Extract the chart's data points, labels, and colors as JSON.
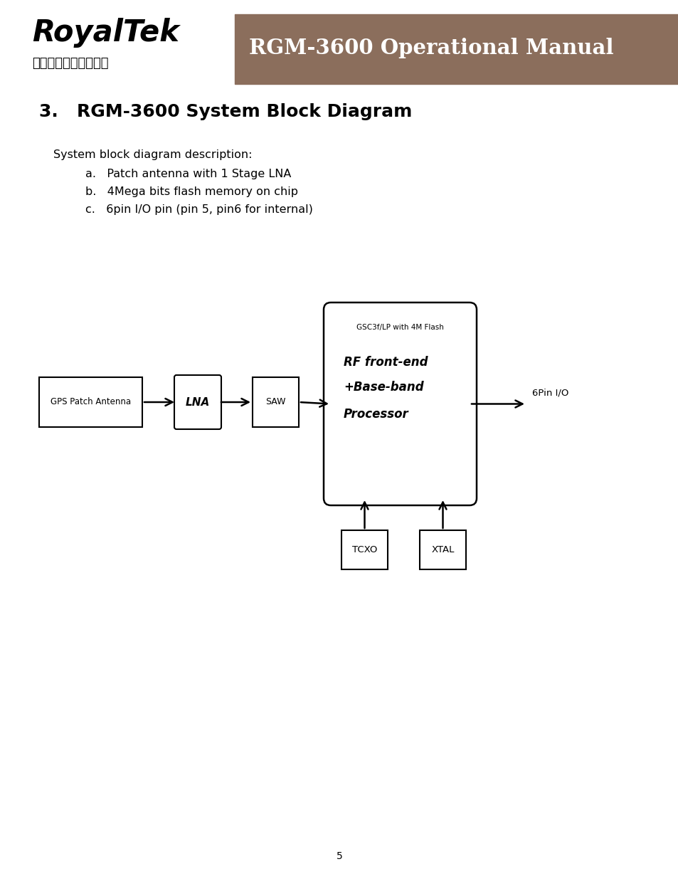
{
  "page_bg": "#ffffff",
  "header_bg": "#8B6E5C",
  "header_text": "RGM-3600 Operational Manual",
  "header_text_color": "#ffffff",
  "logo_text": "RoyalTek",
  "logo_subtext": "鼎天國際股份有限公司",
  "section_title": "3.   RGM-3600 System Block Diagram",
  "desc_label": "System block diagram description:",
  "bullet_a": "a.   Patch antenna with 1 Stage LNA",
  "bullet_b": "b.   4Mega bits flash memory on chip",
  "bullet_c": "c.   6pin I/O pin (pin 5, pin6 for internal)",
  "page_number": "5"
}
